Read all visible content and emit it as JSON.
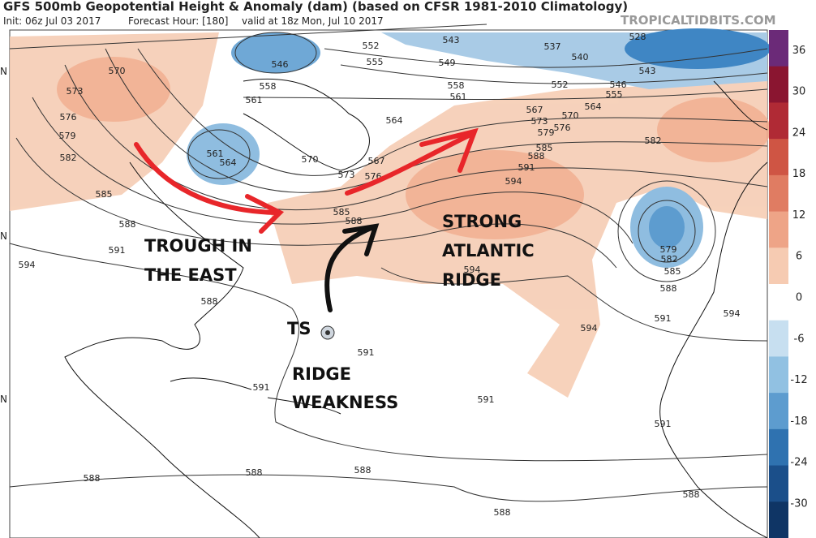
{
  "header": {
    "title": "GFS 500mb Geopotential Height & Anomaly (dam) (based on CFSR 1981-2010 Climatology)",
    "init": "Init: 06z Jul 03 2017",
    "forecast_hour": "Forecast Hour: [180]",
    "valid": "valid at 18z Mon, Jul 10 2017",
    "site": "TROPICALTIDBITS.COM"
  },
  "latitude_labels": [
    "N",
    "N",
    "N"
  ],
  "annotations": {
    "trough": [
      "TROUGH IN",
      "THE EAST"
    ],
    "ridge": [
      "STRONG",
      "ATLANTIC",
      "RIDGE"
    ],
    "ts": "TS",
    "weakness": [
      "RIDGE",
      "WEAKNESS"
    ]
  },
  "colorbar": {
    "labels": [
      36,
      30,
      24,
      18,
      12,
      6,
      0,
      -6,
      -12,
      -18,
      -24,
      -30
    ]
  },
  "contour_labels": [
    552,
    546,
    555,
    558,
    561,
    543,
    549,
    537,
    540,
    543,
    528,
    552,
    546,
    555,
    558,
    561,
    564,
    567,
    570,
    573,
    576,
    579,
    582,
    585,
    588,
    591,
    594,
    564,
    567,
    570,
    573,
    576,
    561,
    564,
    570,
    573,
    576,
    579,
    582,
    585,
    588,
    591,
    594,
    585,
    588,
    588,
    594,
    579,
    582,
    585,
    588,
    591,
    594,
    594,
    591,
    591,
    591,
    591,
    588,
    588,
    588,
    588,
    588
  ]
}
